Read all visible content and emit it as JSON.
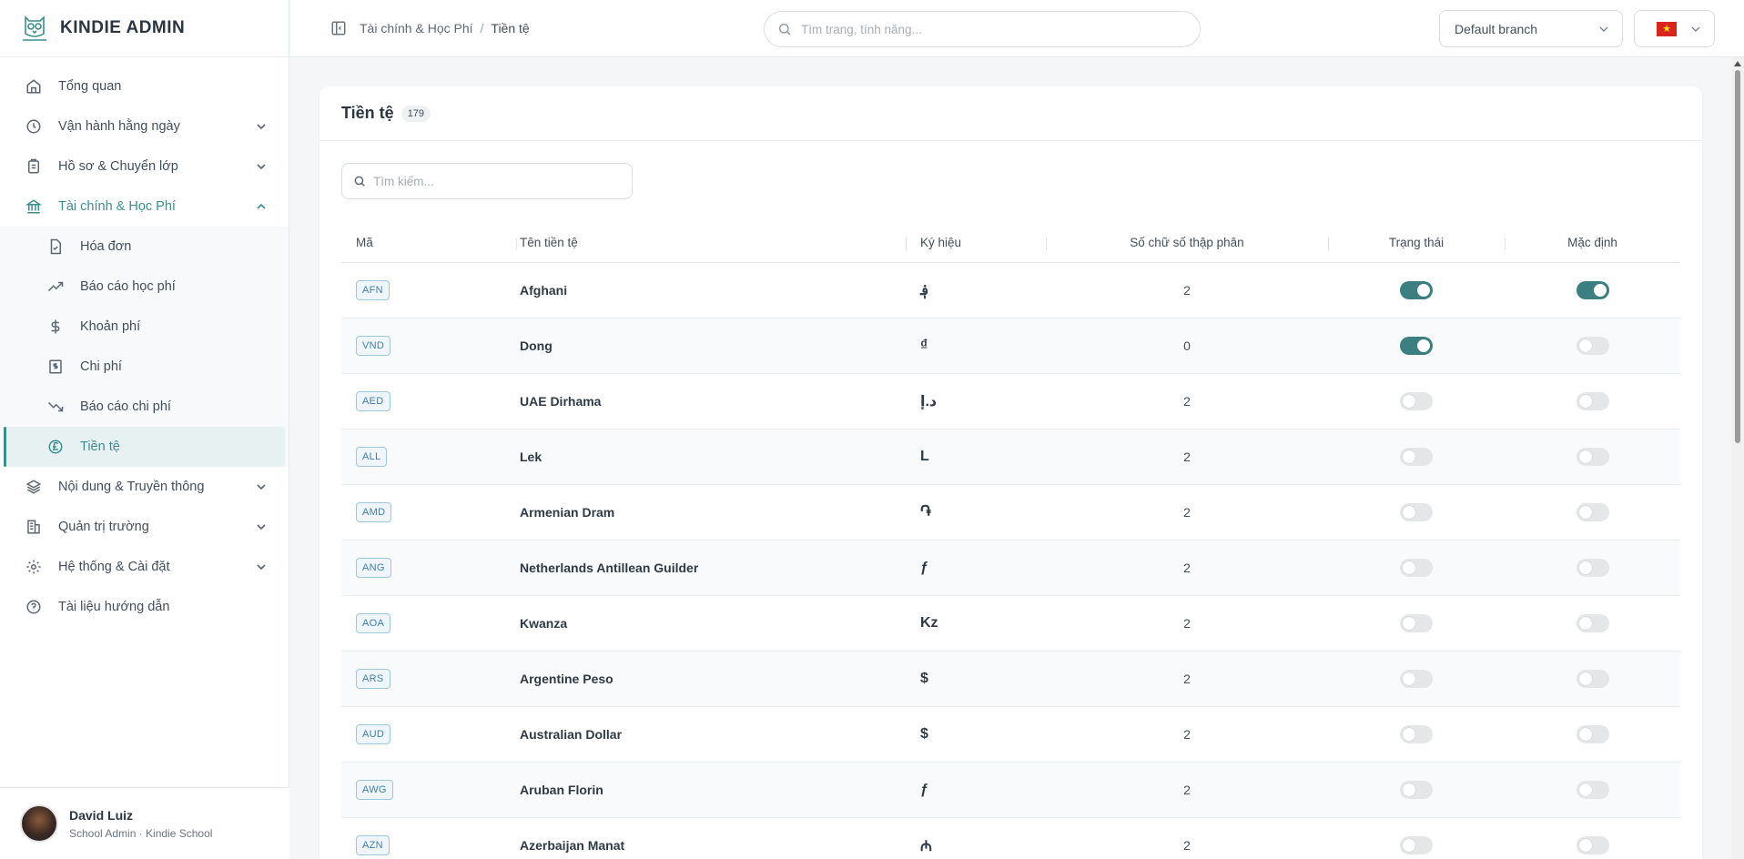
{
  "brand": {
    "name": "KINDIE ADMIN"
  },
  "sidebar": {
    "items": [
      {
        "label": "Tổng quan",
        "icon": "home-icon",
        "has_chevron": false
      },
      {
        "label": "Vận hành hằng ngày",
        "icon": "clock-icon",
        "has_chevron": true
      },
      {
        "label": "Hồ sơ & Chuyển lớp",
        "icon": "clipboard-icon",
        "has_chevron": true
      },
      {
        "label": "Tài chính & Học Phí",
        "icon": "bank-icon",
        "has_chevron": true,
        "open": true
      },
      {
        "label": "Nội dung & Truyền thông",
        "icon": "layers-icon",
        "has_chevron": true
      },
      {
        "label": "Quản trị trường",
        "icon": "building-icon",
        "has_chevron": true
      },
      {
        "label": "Hệ thống & Cài đặt",
        "icon": "gear-icon",
        "has_chevron": true
      },
      {
        "label": "Tài liệu hướng dẫn",
        "icon": "help-circle-icon",
        "has_chevron": false
      }
    ],
    "finance_sub": [
      {
        "label": "Hóa đơn",
        "icon": "invoice-icon"
      },
      {
        "label": "Báo cáo học phí",
        "icon": "trend-up-icon"
      },
      {
        "label": "Khoản phí",
        "icon": "dollar-icon"
      },
      {
        "label": "Chi phí",
        "icon": "expense-icon"
      },
      {
        "label": "Báo cáo chi phí",
        "icon": "trend-down-icon"
      },
      {
        "label": "Tiền tệ",
        "icon": "pound-coin-icon",
        "active": true
      }
    ]
  },
  "user": {
    "name": "David Luiz",
    "role": "School Admin · Kindie School"
  },
  "topbar": {
    "breadcrumb": [
      "Tài chính & Học Phí",
      "Tiền tệ"
    ],
    "search_placeholder": "Tìm trang, tính năng...",
    "branch": "Default branch",
    "language_flag": "vietnam-flag-icon"
  },
  "page": {
    "title": "Tiền tệ",
    "count": "179",
    "search_placeholder": "Tìm kiếm..."
  },
  "table": {
    "headers": {
      "code": "Mã",
      "name": "Tên tiền tệ",
      "symbol": "Ký hiệu",
      "decimals": "Số chữ số thập phân",
      "status": "Trạng thái",
      "default": "Mặc định"
    },
    "rows": [
      {
        "code": "AFN",
        "name": "Afghani",
        "symbol": "؋",
        "decimals": "2",
        "status": true,
        "default": true
      },
      {
        "code": "VND",
        "name": "Dong",
        "symbol": "₫",
        "decimals": "0",
        "status": true,
        "default": false
      },
      {
        "code": "AED",
        "name": "UAE Dirhama",
        "symbol": "د.إ",
        "decimals": "2",
        "status": false,
        "default": false
      },
      {
        "code": "ALL",
        "name": "Lek",
        "symbol": "L",
        "decimals": "2",
        "status": false,
        "default": false
      },
      {
        "code": "AMD",
        "name": "Armenian Dram",
        "symbol": "֏",
        "decimals": "2",
        "status": false,
        "default": false
      },
      {
        "code": "ANG",
        "name": "Netherlands Antillean Guilder",
        "symbol": "ƒ",
        "decimals": "2",
        "status": false,
        "default": false
      },
      {
        "code": "AOA",
        "name": "Kwanza",
        "symbol": "Kz",
        "decimals": "2",
        "status": false,
        "default": false
      },
      {
        "code": "ARS",
        "name": "Argentine Peso",
        "symbol": "$",
        "decimals": "2",
        "status": false,
        "default": false
      },
      {
        "code": "AUD",
        "name": "Australian Dollar",
        "symbol": "$",
        "decimals": "2",
        "status": false,
        "default": false
      },
      {
        "code": "AWG",
        "name": "Aruban Florin",
        "symbol": "ƒ",
        "decimals": "2",
        "status": false,
        "default": false
      },
      {
        "code": "AZN",
        "name": "Azerbaijan Manat",
        "symbol": "₼",
        "decimals": "2",
        "status": false,
        "default": false
      }
    ]
  },
  "colors": {
    "accent": "#3c8d8f",
    "toggle_on": "#3c7f80",
    "badge_border": "#9cc7dd"
  }
}
